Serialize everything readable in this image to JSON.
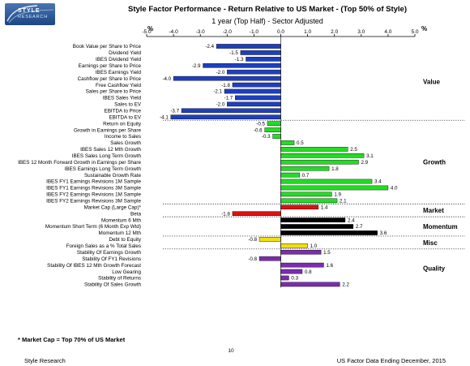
{
  "logo": {
    "line1": "STYLE",
    "line2": "RESEARCH"
  },
  "title": "Style Factor Performance - Return Relative to US Market - (Top 50% of Style)",
  "subtitle": "1 year (Top Half) - Sector Adjusted",
  "percent_label": "%",
  "footnote": "* Market Cap = Top 70% of US Market",
  "page_number": "10",
  "footer_left": "Style Research",
  "footer_right": "US Factor Data Ending December, 2015",
  "chart_data": {
    "type": "bar",
    "orientation": "horizontal",
    "title": "Style Factor Performance - Return Relative to US Market - (Top 50% of Style)",
    "subtitle": "1 year (Top Half) - Sector Adjusted",
    "xlabel": "%",
    "xlim": [
      -5.0,
      5.0
    ],
    "ticks": [
      "-5.0",
      "-4.0",
      "-3.0",
      "-2.0",
      "-1.0",
      "0.0",
      "1.0",
      "2.0",
      "3.0",
      "4.0",
      "5.0"
    ],
    "grid": false,
    "colors": {
      "Value": "#1e3fbf",
      "Growth": "#22dd22",
      "Market": "#dd1111",
      "Momentum": "#000000",
      "Misc": "#f0e010",
      "Quality": "#7a2db0"
    },
    "groups": [
      {
        "name": "Value",
        "items": [
          {
            "label": "Book Value per Share to Price",
            "value": -2.4
          },
          {
            "label": "Dividend Yield",
            "value": -1.5
          },
          {
            "label": "IBES Dividend Yield",
            "value": -1.3
          },
          {
            "label": "Earnings per Share to Price",
            "value": -2.9
          },
          {
            "label": "IBES Earnings Yield",
            "value": -2.0
          },
          {
            "label": "Cashflow per Share to Price",
            "value": -4.0
          },
          {
            "label": "Free Cashflow Yield",
            "value": -1.8
          },
          {
            "label": "Sales per Share to Price",
            "value": -2.1
          },
          {
            "label": "IBES Sales Yield",
            "value": -1.7
          },
          {
            "label": "Sales to EV",
            "value": -2.0
          },
          {
            "label": "EBITDA to Price",
            "value": -3.7
          },
          {
            "label": "EBITDA to EV",
            "value": -4.1
          }
        ]
      },
      {
        "name": "Growth",
        "items": [
          {
            "label": "Return on Equity",
            "value": -0.5
          },
          {
            "label": "Growth in Earnings per Share",
            "value": -0.6
          },
          {
            "label": "Income to Sales",
            "value": -0.3
          },
          {
            "label": "Sales Growth",
            "value": 0.5
          },
          {
            "label": "IBES Sales 12 Mth Growth",
            "value": 2.5
          },
          {
            "label": "IBES Sales Long Term Growth",
            "value": 3.1
          },
          {
            "label": "IBES 12 Month Forward Growth in Earnings per Share",
            "value": 2.9
          },
          {
            "label": "IBES Earnings Long Term Growth",
            "value": 1.8
          },
          {
            "label": "Sustainable Growth Rate",
            "value": 0.7
          },
          {
            "label": "IBES FY1  Earnings Revisions 1M Sample",
            "value": 3.4
          },
          {
            "label": "IBES FY1  Earnings Revisions 3M Sample",
            "value": 4.0
          },
          {
            "label": "IBES FY2  Earnings Revisions 1M Sample",
            "value": 1.9
          },
          {
            "label": "IBES FY2  Earnings Revisions 3M Sample",
            "value": 2.1
          }
        ]
      },
      {
        "name": "Market",
        "items": [
          {
            "label": "Market Cap (Large Cap)*",
            "value": 1.4
          },
          {
            "label": "Beta",
            "value": -1.8
          }
        ]
      },
      {
        "name": "Momentum",
        "items": [
          {
            "label": "Momentum 6 Mth",
            "value": 2.4
          },
          {
            "label": "Momentum Short Term (6 Month Exp Wtd)",
            "value": 2.7
          },
          {
            "label": "Momentum 12 Mth",
            "value": 3.6
          }
        ]
      },
      {
        "name": "Misc",
        "items": [
          {
            "label": "Debt to Equity",
            "value": -0.8
          },
          {
            "label": "Foreign Sales as a % Total Sales",
            "value": 1.0
          }
        ]
      },
      {
        "name": "Quality",
        "items": [
          {
            "label": "Stability Of Earnings Growth",
            "value": 1.5
          },
          {
            "label": "Stability Of FY1 Revisions",
            "value": -0.8
          },
          {
            "label": "Stability Of IBES 12 Mth Growth Forecast",
            "value": 1.6
          },
          {
            "label": "Low Gearing",
            "value": 0.8
          },
          {
            "label": "Stability of Returns",
            "value": 0.3
          },
          {
            "label": "Stability Of Sales Growth",
            "value": 2.2
          }
        ]
      }
    ]
  }
}
